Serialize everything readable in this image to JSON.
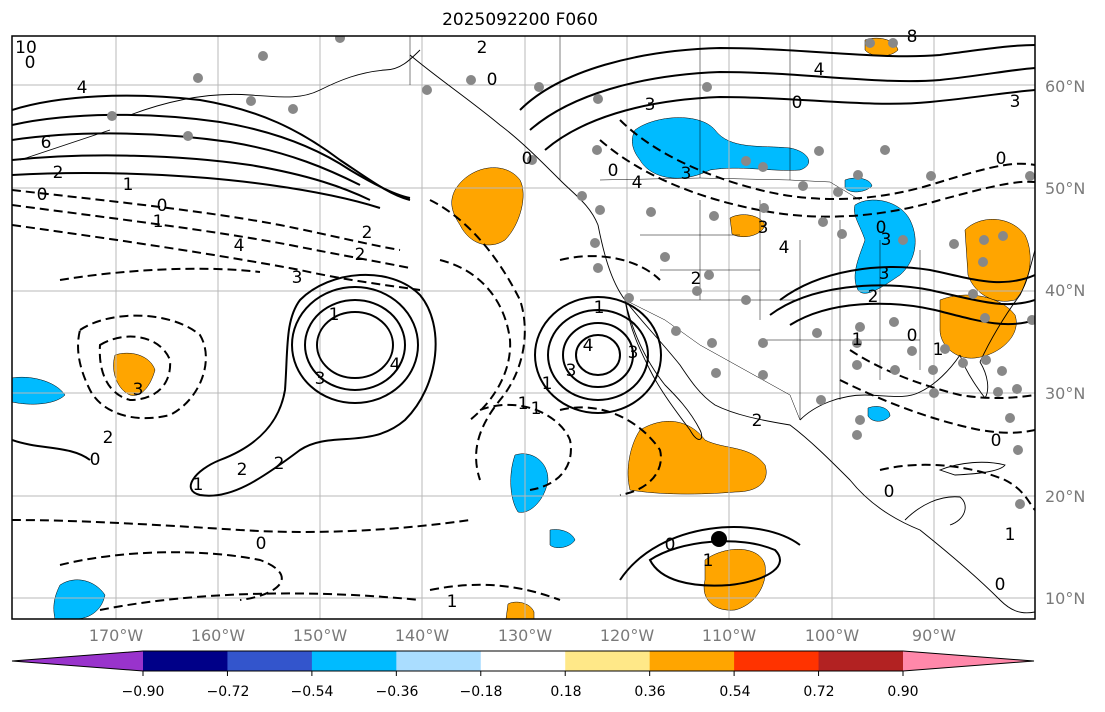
{
  "title": "2025092200 F060",
  "latitude_labels": [
    {
      "label": "60°N"
    },
    {
      "label": "50°N"
    },
    {
      "label": "40°N"
    },
    {
      "label": "30°N"
    },
    {
      "label": "20°N"
    },
    {
      "label": "10°N"
    }
  ],
  "longitude_labels": [
    {
      "label": "170°W"
    },
    {
      "label": "160°W"
    },
    {
      "label": "150°W"
    },
    {
      "label": "140°W"
    },
    {
      "label": "130°W"
    },
    {
      "label": "120°W"
    },
    {
      "label": "110°W"
    },
    {
      "label": "100°W"
    },
    {
      "label": "90°W"
    }
  ],
  "colorbar": {
    "colors": [
      "#9933cc",
      "#000088",
      "#3355cc",
      "#00bbff",
      "#aaddff",
      "#ffffff",
      "#ffe888",
      "#ffa500",
      "#ff3300",
      "#b22222",
      "#ff88aa"
    ],
    "tick_labels": [
      "−0.90",
      "−0.72",
      "−0.54",
      "−0.36",
      "−0.18",
      "0.18",
      "0.36",
      "0.54",
      "0.72",
      "0.90"
    ]
  },
  "contour_labels": [
    "10",
    "0",
    "4",
    "6",
    "2",
    "0",
    "1",
    "0",
    "1",
    "4",
    "2",
    "3",
    "2",
    "1",
    "4",
    "3",
    "3",
    "2",
    "0",
    "1",
    "2",
    "2",
    "2",
    "0",
    "0",
    "1",
    "1",
    "4",
    "3",
    "3",
    "1",
    "1",
    "4",
    "3",
    "0",
    "2",
    "1",
    "0",
    "8",
    "4",
    "0",
    "3",
    "3",
    "4",
    "0",
    "3",
    "3",
    "2",
    "1",
    "0",
    "3",
    "2",
    "1",
    "0",
    "0",
    "1",
    "0",
    "0",
    "0",
    "1"
  ]
}
